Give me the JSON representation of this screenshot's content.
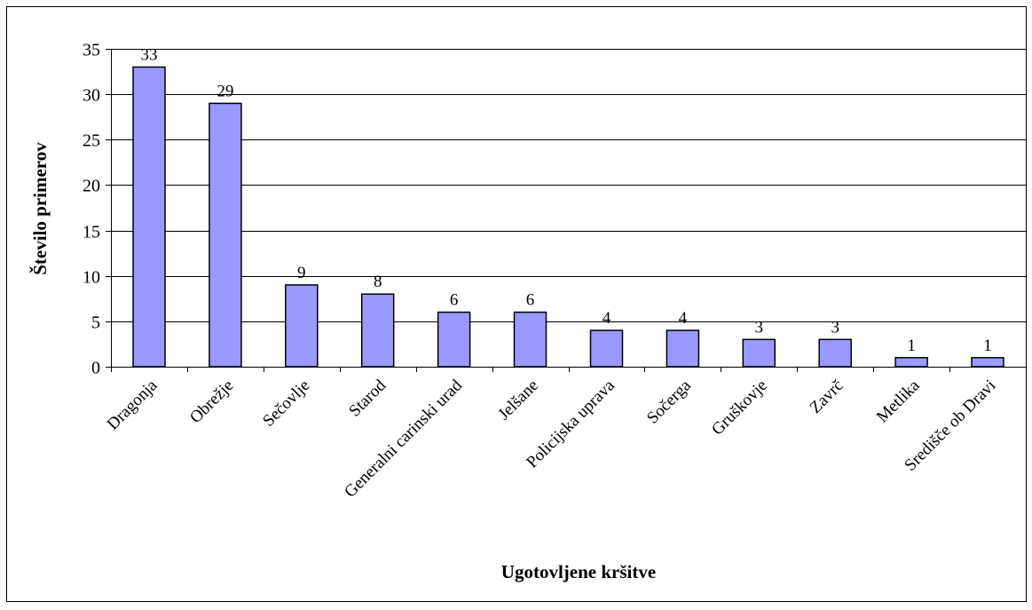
{
  "chart_data": {
    "type": "bar",
    "title": "",
    "xlabel": "Ugotovljene kršitve",
    "ylabel": "Število primerov",
    "ylim": [
      0,
      35
    ],
    "yticks": [
      0,
      5,
      10,
      15,
      20,
      25,
      30,
      35
    ],
    "grid": true,
    "legend": "none",
    "bar_color": "#9999ff",
    "categories": [
      "Dragonja",
      "Obrežje",
      "Sečovlje",
      "Starod",
      "Generalni carinski urad",
      "Jelšane",
      "Policijska uprava",
      "Sočerga",
      "Gruškovje",
      "Zavrč",
      "Metlika",
      "Središče ob Dravi"
    ],
    "values": [
      33,
      29,
      9,
      8,
      6,
      6,
      4,
      4,
      3,
      3,
      1,
      1
    ],
    "data_labels": [
      "33",
      "29",
      "9",
      "8",
      "6",
      "6",
      "4",
      "4",
      "3",
      "3",
      "1",
      "1"
    ]
  }
}
